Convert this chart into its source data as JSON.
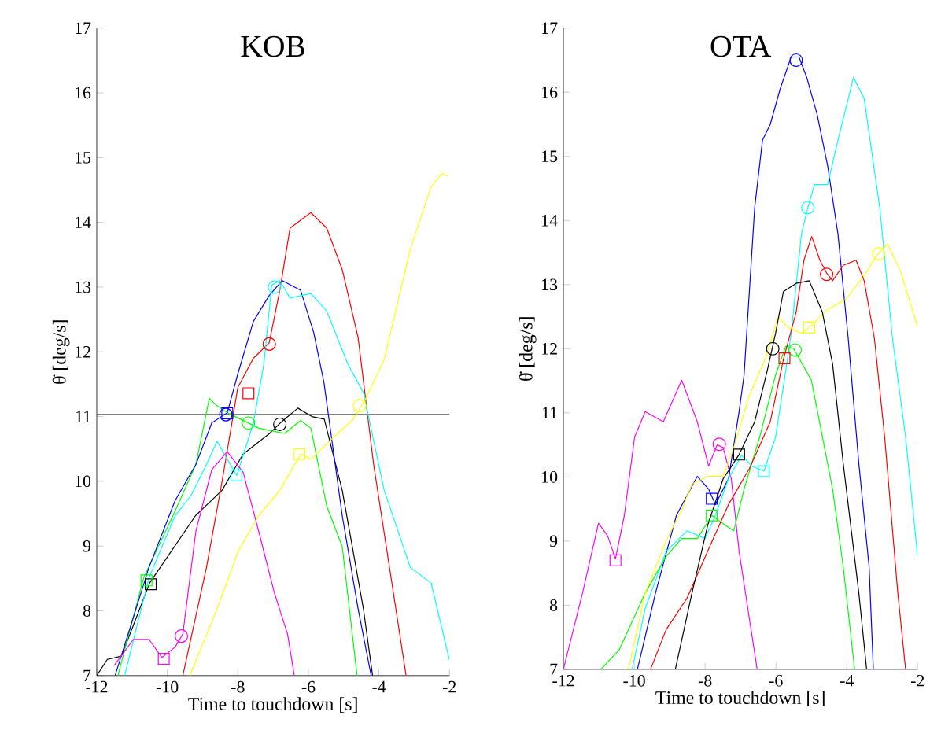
{
  "chart_data": [
    {
      "type": "line",
      "title": "KOB",
      "xlabel": "Time to touchdown [s]",
      "ylabel": "θ̇ [deg/s]",
      "xlim": [
        -12,
        -2
      ],
      "ylim": [
        7,
        17
      ],
      "xticks": [
        -12,
        -10,
        -8,
        -6,
        -4,
        -2
      ],
      "yticks": [
        7,
        8,
        9,
        10,
        11,
        12,
        13,
        14,
        15,
        16,
        17
      ],
      "grid": false,
      "ref_lines": [
        {
          "axis": "y",
          "value": 11.03,
          "color": "#000000"
        }
      ],
      "series": [
        {
          "color": "#000000",
          "x": [
            -12,
            -11.7,
            -11.3,
            -10.5,
            -9.2,
            -8.45,
            -7.85,
            -7.1,
            -6.8,
            -6.3,
            -5.9,
            -5.55,
            -5.04,
            -4.44,
            -4.18
          ],
          "values": [
            7,
            7.25,
            7.3,
            8.43,
            9.47,
            9.86,
            10.42,
            10.74,
            10.9,
            11.13,
            11.0,
            10.96,
            9.86,
            8.03,
            7
          ]
        },
        {
          "color": "#00ff00",
          "x": [
            -11.4,
            -10.67,
            -9.78,
            -9.19,
            -8.81,
            -8.6,
            -8.3,
            -7.7,
            -7.4,
            -6.67,
            -6.22,
            -5.93,
            -5.48,
            -5.04,
            -4.62
          ],
          "values": [
            7,
            8.51,
            9.54,
            10.26,
            11.28,
            11.17,
            11.06,
            10.9,
            10.82,
            10.74,
            10.94,
            10.82,
            9.62,
            8.99,
            7
          ]
        },
        {
          "color": "#0000ff",
          "x": [
            -11.48,
            -10.52,
            -9.78,
            -9.19,
            -8.74,
            -8.3,
            -8.0,
            -7.56,
            -7.11,
            -6.74,
            -6.22,
            -5.85,
            -5.56,
            -5.04,
            -4.59,
            -4.22
          ],
          "values": [
            7,
            8.67,
            9.7,
            10.26,
            10.9,
            11.06,
            11.66,
            12.47,
            12.87,
            13.1,
            12.95,
            12.3,
            11.53,
            9.47,
            8.03,
            7
          ]
        },
        {
          "color": "#ff0000",
          "x": [
            -9.56,
            -8.89,
            -8.44,
            -8.0,
            -7.56,
            -7.11,
            -6.81,
            -6.52,
            -5.93,
            -5.48,
            -5.04,
            -4.59,
            -4.15,
            -3.7,
            -3.23
          ],
          "values": [
            7,
            8.67,
            10.02,
            11.45,
            11.9,
            12.14,
            12.95,
            13.91,
            14.15,
            13.91,
            13.27,
            12.22,
            10.26,
            8.67,
            7
          ]
        },
        {
          "color": "#00ffff",
          "x": [
            -11.21,
            -10.52,
            -9.78,
            -9.33,
            -8.89,
            -8.59,
            -8.3,
            -8.03,
            -7.56,
            -7.26,
            -7.04,
            -6.81,
            -6.52,
            -5.93,
            -5.48,
            -4.89,
            -4.44,
            -3.85,
            -3.11,
            -2.52,
            -2.0
          ],
          "values": [
            7,
            8.51,
            9.47,
            9.78,
            10.26,
            10.62,
            10.34,
            10.09,
            10.9,
            11.82,
            13.03,
            13.1,
            12.83,
            12.9,
            12.63,
            11.82,
            11.37,
            9.86,
            8.67,
            8.43,
            7.24
          ]
        },
        {
          "color": "#ff00ff",
          "x": [
            -11.5,
            -10.96,
            -10.52,
            -10.15,
            -9.78,
            -9.56,
            -9.19,
            -8.74,
            -8.3,
            -7.85,
            -7.41,
            -6.96,
            -6.59,
            -6.4
          ],
          "values": [
            7.16,
            7.56,
            7.56,
            7.28,
            7.44,
            7.64,
            9.23,
            10.18,
            10.46,
            10.14,
            9.23,
            8.27,
            7.64,
            7
          ]
        },
        {
          "color": "#ffff00",
          "x": [
            -9.36,
            -8.59,
            -8.0,
            -7.41,
            -6.81,
            -6.22,
            -5.93,
            -5.33,
            -4.74,
            -4.44,
            -3.85,
            -3.11,
            -2.52,
            -2.22,
            -2.04
          ],
          "values": [
            7,
            8.03,
            8.91,
            9.47,
            9.86,
            10.42,
            10.34,
            10.66,
            10.95,
            11.21,
            11.88,
            13.59,
            14.55,
            14.75,
            14.71
          ]
        },
        {
          "type": "scatter",
          "marker": "circle",
          "x": [
            -6.81,
            -7.7,
            -8.34,
            -7.11,
            -6.96,
            -9.6,
            -4.55
          ],
          "values": [
            10.88,
            10.9,
            11.03,
            12.12,
            13.0,
            7.61,
            11.17
          ],
          "colors": [
            "#000000",
            "#00ff00",
            "#0000ff",
            "#ff0000",
            "#00ffff",
            "#ff00ff",
            "#ffff00"
          ]
        },
        {
          "type": "scatter",
          "marker": "square",
          "x": [
            -10.47,
            -10.59,
            -8.3,
            -7.7,
            -8.04,
            -10.1,
            -6.25
          ],
          "values": [
            8.41,
            8.47,
            11.05,
            11.36,
            10.09,
            7.26,
            10.42
          ],
          "colors": [
            "#000000",
            "#00ff00",
            "#0000ff",
            "#ff0000",
            "#00ffff",
            "#ff00ff",
            "#ffff00"
          ]
        }
      ]
    },
    {
      "type": "line",
      "title": "OTA",
      "xlabel": "Time to touchdown [s]",
      "ylabel": "θ̇ [deg/s]",
      "xlim": [
        -12,
        -2
      ],
      "ylim": [
        7,
        17
      ],
      "xticks": [
        -12,
        -10,
        -8,
        -6,
        -4,
        -2
      ],
      "yticks": [
        7,
        8,
        9,
        10,
        11,
        12,
        13,
        14,
        15,
        16,
        17
      ],
      "grid": false,
      "series": [
        {
          "color": "#ff00ff",
          "x": [
            -12,
            -11.46,
            -11.01,
            -10.75,
            -10.53,
            -10.28,
            -9.99,
            -9.69,
            -9.18,
            -8.66,
            -8.22,
            -7.9,
            -7.66,
            -7.49,
            -7.26,
            -7.04,
            -6.75,
            -6.53
          ],
          "values": [
            7,
            8.19,
            9.28,
            9.08,
            8.72,
            9.4,
            10.62,
            11.02,
            10.86,
            11.51,
            10.86,
            10.17,
            10.5,
            10.46,
            9.97,
            8.84,
            7.79,
            7
          ]
        },
        {
          "color": "#0000ff",
          "x": [
            -9.91,
            -9.4,
            -8.81,
            -8.22,
            -7.9,
            -7.71,
            -7.34,
            -7.04,
            -6.9,
            -6.6,
            -6.38,
            -6.16,
            -5.87,
            -5.57,
            -5.35,
            -5.13,
            -4.84,
            -4.54,
            -4.25,
            -3.96,
            -3.66,
            -3.37,
            -3.25
          ],
          "values": [
            7,
            8.19,
            9.4,
            10.01,
            9.81,
            9.57,
            9.97,
            11.02,
            11.59,
            14.2,
            15.25,
            15.5,
            16.07,
            16.55,
            16.55,
            16.23,
            15.66,
            14.85,
            13.79,
            12.16,
            10.21,
            8.6,
            7
          ]
        },
        {
          "color": "#00ffff",
          "x": [
            -10.06,
            -9.69,
            -9.1,
            -8.51,
            -8.0,
            -7.71,
            -7.34,
            -6.97,
            -6.68,
            -6.34,
            -6.01,
            -5.72,
            -5.57,
            -5.28,
            -5.1,
            -4.91,
            -4.54,
            -4.25,
            -3.81,
            -3.51,
            -3.07,
            -2.71,
            -2.34,
            -2.0
          ],
          "values": [
            7,
            7.95,
            8.84,
            9.16,
            9.04,
            9.4,
            9.97,
            10.34,
            10.17,
            10.09,
            10.62,
            11.67,
            12.24,
            13.79,
            14.2,
            14.56,
            14.56,
            15.25,
            16.23,
            15.9,
            14.2,
            12.16,
            10.62,
            8.76
          ]
        },
        {
          "color": "#00ff00",
          "x": [
            -10.94,
            -10.43,
            -9.69,
            -9.1,
            -8.66,
            -8.22,
            -7.81,
            -7.41,
            -7.19,
            -6.9,
            -6.46,
            -6.01,
            -5.72,
            -5.5,
            -5.0,
            -4.4,
            -4.1,
            -3.78
          ],
          "values": [
            7,
            7.3,
            8.19,
            8.76,
            9.04,
            9.04,
            9.4,
            9.24,
            9.16,
            9.81,
            10.62,
            11.59,
            12.04,
            12.0,
            11.51,
            9.81,
            8.6,
            7
          ]
        },
        {
          "color": "#ffff00",
          "x": [
            -10.16,
            -9.69,
            -9.1,
            -8.66,
            -8.37,
            -7.93,
            -7.49,
            -7.19,
            -6.75,
            -6.31,
            -5.94,
            -5.65,
            -5.28,
            -5.06,
            -4.54,
            -4.03,
            -3.51,
            -3.15,
            -2.85,
            -2.49,
            -2.0
          ],
          "values": [
            7,
            8.19,
            9.0,
            9.49,
            9.89,
            10.01,
            10.01,
            10.46,
            11.27,
            11.83,
            12.49,
            12.33,
            12.24,
            12.33,
            12.61,
            12.77,
            13.14,
            13.46,
            13.63,
            13.22,
            12.33
          ]
        },
        {
          "color": "#ff0000",
          "x": [
            -9.54,
            -9.1,
            -8.51,
            -7.93,
            -7.34,
            -6.75,
            -6.16,
            -5.79,
            -5.43,
            -5.21,
            -4.99,
            -4.76,
            -4.57,
            -4.4,
            -4.1,
            -3.74,
            -3.51,
            -3.22,
            -2.93,
            -2.56,
            -2.34
          ],
          "values": [
            7,
            7.62,
            8.11,
            8.84,
            9.57,
            10.13,
            10.86,
            11.83,
            12.57,
            13.38,
            13.75,
            13.38,
            13.18,
            13.06,
            13.3,
            13.38,
            13.06,
            12.16,
            10.62,
            8.19,
            7
          ]
        },
        {
          "color": "#000000",
          "x": [
            -8.84,
            -8.37,
            -7.93,
            -7.49,
            -7.04,
            -6.6,
            -6.24,
            -6.01,
            -5.79,
            -5.43,
            -5.06,
            -4.69,
            -4.4,
            -4.1,
            -3.66,
            -3.44
          ],
          "values": [
            7,
            8.19,
            9.24,
            9.97,
            10.35,
            10.86,
            11.67,
            12.24,
            12.89,
            13.02,
            13.06,
            12.57,
            11.76,
            10.21,
            8.19,
            7
          ]
        },
        {
          "type": "scatter",
          "marker": "circle",
          "x": [
            -7.6,
            -5.43,
            -5.1,
            -5.46,
            -3.1,
            -4.57,
            -6.09
          ],
          "values": [
            10.51,
            16.5,
            14.2,
            11.98,
            13.48,
            13.16,
            12.0
          ],
          "colors": [
            "#ff00ff",
            "#0000ff",
            "#00ffff",
            "#00ff00",
            "#ffff00",
            "#ff0000",
            "#000000"
          ]
        },
        {
          "type": "scatter",
          "marker": "square",
          "x": [
            -10.53,
            -7.81,
            -6.34,
            -7.81,
            -5.06,
            -5.76,
            -7.04
          ],
          "values": [
            8.7,
            9.66,
            10.09,
            9.4,
            12.33,
            11.85,
            10.35
          ],
          "colors": [
            "#ff00ff",
            "#0000ff",
            "#00ffff",
            "#00ff00",
            "#ffff00",
            "#ff0000",
            "#000000"
          ]
        }
      ]
    }
  ]
}
